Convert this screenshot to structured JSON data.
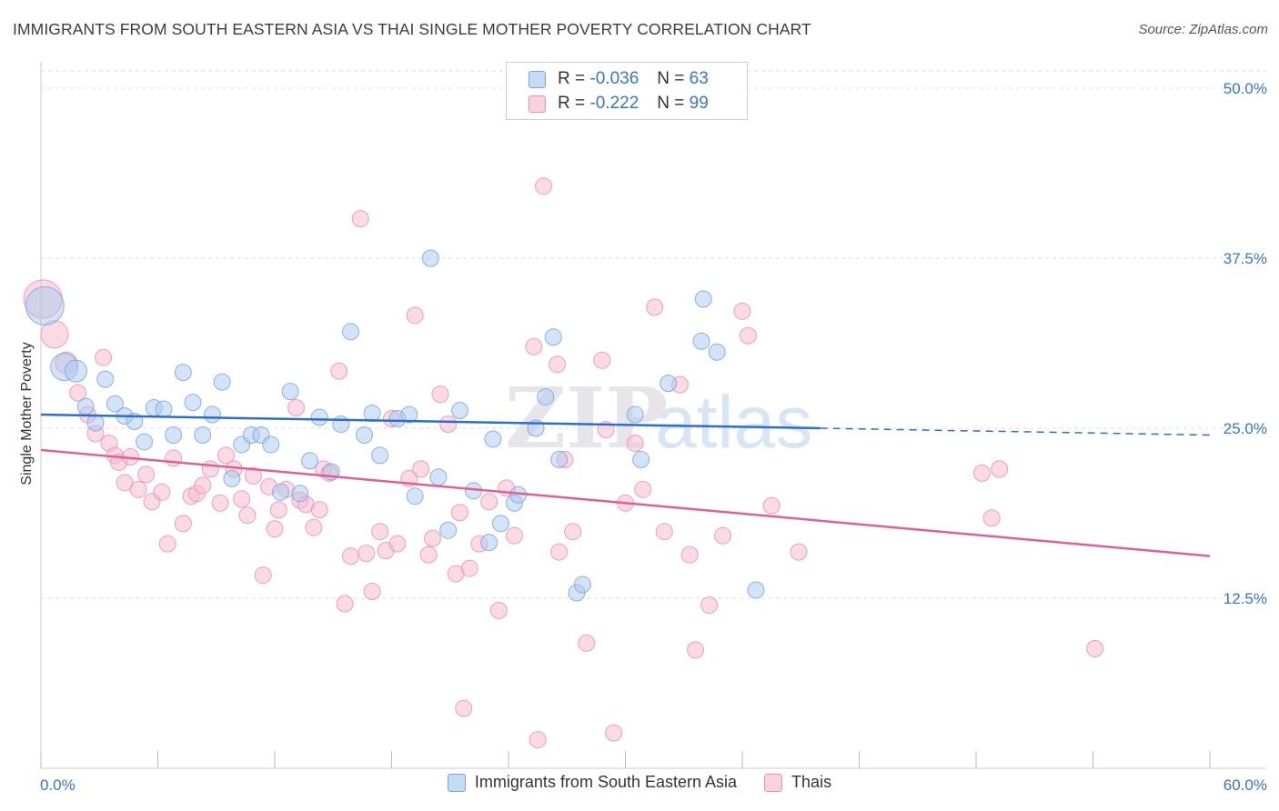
{
  "title": "IMMIGRANTS FROM SOUTH EASTERN ASIA VS THAI SINGLE MOTHER POVERTY CORRELATION CHART",
  "source": "Source: ZipAtlas.com",
  "watermark": {
    "zip": "ZIP",
    "atlas": "atlas"
  },
  "colors": {
    "blue_fill": "#a9c8f0",
    "blue_stroke": "#7aa4dc",
    "blue_line": "#2a6fcf",
    "pink_fill": "#f6b8cc",
    "pink_stroke": "#ec8fae",
    "pink_line": "#e0608f",
    "axis_label": "#3a74c4"
  },
  "stats": {
    "blue": {
      "r_label": "R =",
      "r_value": "-0.036",
      "n_label": "N =",
      "n_value": "63"
    },
    "pink": {
      "r_label": "R =",
      "r_value": "-0.222",
      "n_label": "N =",
      "n_value": "99"
    }
  },
  "legend": {
    "blue": "Immigrants from South Eastern Asia",
    "pink": "Thais"
  },
  "chart_data": {
    "type": "scatter",
    "title": "IMMIGRANTS FROM SOUTH EASTERN ASIA VS THAI SINGLE MOTHER POVERTY CORRELATION CHART",
    "xlabel": "",
    "ylabel": "Single Mother Poverty",
    "xlim": [
      0,
      60
    ],
    "ylim": [
      0,
      50
    ],
    "x_tick_labels": [
      "0.0%",
      "60.0%"
    ],
    "y_ticks": [
      12.5,
      25.0,
      37.5,
      50.0
    ],
    "y_tick_labels": [
      "12.5%",
      "25.0%",
      "37.5%",
      "50.0%"
    ],
    "grid": "horizontal dashed",
    "legend_position": "bottom",
    "series": [
      {
        "name": "Immigrants from South Eastern Asia",
        "color": "#a9c8f0",
        "trend": {
          "x0": 0,
          "y0": 26.0,
          "x1": 40,
          "y1": 25.0,
          "dash_to_x": 60,
          "dash_to_y": 24.5
        },
        "points": [
          [
            0.2,
            34.0,
            3
          ],
          [
            1.2,
            29.5,
            2
          ],
          [
            1.8,
            29.2,
            1
          ],
          [
            2.3,
            26.6,
            0
          ],
          [
            2.8,
            25.4,
            0
          ],
          [
            3.3,
            28.6,
            0
          ],
          [
            3.8,
            26.8,
            0
          ],
          [
            4.3,
            25.9,
            0
          ],
          [
            4.8,
            25.5,
            0
          ],
          [
            5.3,
            24.0,
            0
          ],
          [
            5.8,
            26.5,
            0
          ],
          [
            6.3,
            26.4,
            0
          ],
          [
            6.8,
            24.5,
            0
          ],
          [
            7.3,
            29.1,
            0
          ],
          [
            7.8,
            26.9,
            0
          ],
          [
            8.3,
            24.5,
            0
          ],
          [
            8.8,
            26.0,
            0
          ],
          [
            9.3,
            28.4,
            0
          ],
          [
            9.8,
            21.3,
            0
          ],
          [
            10.3,
            23.8,
            0
          ],
          [
            10.8,
            24.5,
            0
          ],
          [
            11.3,
            24.5,
            0
          ],
          [
            11.8,
            23.8,
            0
          ],
          [
            12.3,
            20.3,
            0
          ],
          [
            12.8,
            27.7,
            0
          ],
          [
            13.3,
            20.2,
            0
          ],
          [
            13.8,
            22.6,
            0
          ],
          [
            14.3,
            25.8,
            0
          ],
          [
            14.9,
            21.8,
            0
          ],
          [
            15.4,
            25.3,
            0
          ],
          [
            15.9,
            32.1,
            0
          ],
          [
            16.6,
            24.5,
            0
          ],
          [
            17.0,
            26.1,
            0
          ],
          [
            17.4,
            23.0,
            0
          ],
          [
            18.3,
            25.7,
            0
          ],
          [
            18.9,
            26.0,
            0
          ],
          [
            19.2,
            20.0,
            0
          ],
          [
            20.0,
            37.5,
            0
          ],
          [
            20.4,
            21.4,
            0
          ],
          [
            20.9,
            17.5,
            0
          ],
          [
            21.5,
            26.3,
            0
          ],
          [
            22.2,
            20.4,
            0
          ],
          [
            23.0,
            16.6,
            0
          ],
          [
            23.2,
            24.2,
            0
          ],
          [
            23.6,
            18.0,
            0
          ],
          [
            24.3,
            19.5,
            0
          ],
          [
            24.5,
            20.1,
            0
          ],
          [
            25.4,
            25.0,
            0
          ],
          [
            25.9,
            27.3,
            0
          ],
          [
            26.3,
            31.7,
            0
          ],
          [
            26.6,
            22.7,
            0
          ],
          [
            27.5,
            12.9,
            0
          ],
          [
            27.8,
            13.5,
            0
          ],
          [
            30.5,
            26.0,
            0
          ],
          [
            30.8,
            22.7,
            0
          ],
          [
            32.2,
            28.3,
            0
          ],
          [
            33.9,
            31.4,
            0
          ],
          [
            34.0,
            34.5,
            0
          ],
          [
            34.7,
            30.6,
            0
          ],
          [
            36.7,
            13.1,
            0
          ]
        ]
      },
      {
        "name": "Thais",
        "color": "#f6b8cc",
        "trend": {
          "x0": 0,
          "y0": 23.4,
          "x1": 60,
          "y1": 15.6
        },
        "points": [
          [
            0.1,
            34.5,
            3
          ],
          [
            0.7,
            31.9,
            2
          ],
          [
            1.3,
            29.8,
            1
          ],
          [
            1.9,
            27.6,
            0
          ],
          [
            2.4,
            26.0,
            0
          ],
          [
            2.8,
            24.6,
            0
          ],
          [
            3.2,
            30.2,
            0
          ],
          [
            3.5,
            23.9,
            0
          ],
          [
            3.8,
            23.0,
            0
          ],
          [
            4.0,
            22.5,
            0
          ],
          [
            4.3,
            21.0,
            0
          ],
          [
            4.6,
            22.9,
            0
          ],
          [
            5.0,
            20.5,
            0
          ],
          [
            5.4,
            21.6,
            0
          ],
          [
            5.7,
            19.6,
            0
          ],
          [
            6.2,
            20.3,
            0
          ],
          [
            6.5,
            16.5,
            0
          ],
          [
            6.8,
            22.8,
            0
          ],
          [
            7.3,
            18.0,
            0
          ],
          [
            7.7,
            20.0,
            0
          ],
          [
            8.0,
            20.2,
            0
          ],
          [
            8.3,
            20.8,
            0
          ],
          [
            8.7,
            22.0,
            0
          ],
          [
            9.2,
            19.5,
            0
          ],
          [
            9.5,
            23.0,
            0
          ],
          [
            9.9,
            22.0,
            0
          ],
          [
            10.3,
            19.8,
            0
          ],
          [
            10.6,
            18.6,
            0
          ],
          [
            10.9,
            21.5,
            0
          ],
          [
            11.4,
            14.2,
            0
          ],
          [
            11.7,
            20.7,
            0
          ],
          [
            12.0,
            17.6,
            0
          ],
          [
            12.2,
            19.0,
            0
          ],
          [
            12.6,
            20.5,
            0
          ],
          [
            13.1,
            26.5,
            0
          ],
          [
            13.3,
            19.7,
            0
          ],
          [
            13.6,
            19.4,
            0
          ],
          [
            14.0,
            17.7,
            0
          ],
          [
            14.3,
            19.0,
            0
          ],
          [
            14.5,
            22.0,
            0
          ],
          [
            14.8,
            21.7,
            0
          ],
          [
            15.3,
            29.2,
            0
          ],
          [
            15.6,
            12.1,
            0
          ],
          [
            15.9,
            15.6,
            0
          ],
          [
            16.4,
            40.4,
            0
          ],
          [
            16.7,
            15.8,
            0
          ],
          [
            17.0,
            13.0,
            0
          ],
          [
            17.4,
            17.4,
            0
          ],
          [
            17.7,
            16.0,
            0
          ],
          [
            18.0,
            25.7,
            0
          ],
          [
            18.3,
            16.5,
            0
          ],
          [
            18.9,
            21.3,
            0
          ],
          [
            19.2,
            33.3,
            0
          ],
          [
            19.5,
            22.0,
            0
          ],
          [
            19.9,
            15.7,
            0
          ],
          [
            20.1,
            16.9,
            0
          ],
          [
            20.5,
            27.5,
            0
          ],
          [
            20.9,
            25.3,
            0
          ],
          [
            21.3,
            14.3,
            0
          ],
          [
            21.5,
            18.8,
            0
          ],
          [
            21.7,
            4.4,
            0
          ],
          [
            22.0,
            14.7,
            0
          ],
          [
            22.5,
            16.5,
            0
          ],
          [
            23.0,
            19.6,
            0
          ],
          [
            23.5,
            11.6,
            0
          ],
          [
            23.9,
            20.6,
            0
          ],
          [
            24.3,
            17.1,
            0
          ],
          [
            25.3,
            31.0,
            0
          ],
          [
            25.5,
            2.1,
            0
          ],
          [
            25.8,
            42.8,
            0
          ],
          [
            26.5,
            29.7,
            0
          ],
          [
            26.6,
            15.9,
            0
          ],
          [
            26.9,
            22.7,
            0
          ],
          [
            27.3,
            17.4,
            0
          ],
          [
            28.0,
            9.2,
            0
          ],
          [
            28.8,
            30.0,
            0
          ],
          [
            29.0,
            24.9,
            0
          ],
          [
            29.4,
            2.6,
            0
          ],
          [
            30.0,
            19.5,
            0
          ],
          [
            30.5,
            23.9,
            0
          ],
          [
            30.9,
            20.5,
            0
          ],
          [
            31.5,
            33.9,
            0
          ],
          [
            32.0,
            17.4,
            0
          ],
          [
            32.8,
            28.2,
            0
          ],
          [
            33.3,
            15.7,
            0
          ],
          [
            33.6,
            8.7,
            0
          ],
          [
            34.3,
            12.0,
            0
          ],
          [
            35.0,
            17.1,
            0
          ],
          [
            36.0,
            33.6,
            0
          ],
          [
            36.3,
            31.8,
            0
          ],
          [
            37.5,
            19.3,
            0
          ],
          [
            38.9,
            15.9,
            0
          ],
          [
            48.3,
            21.7,
            0
          ],
          [
            48.8,
            18.4,
            0
          ],
          [
            49.2,
            22.0,
            0
          ],
          [
            54.1,
            8.8,
            0
          ]
        ]
      }
    ]
  }
}
